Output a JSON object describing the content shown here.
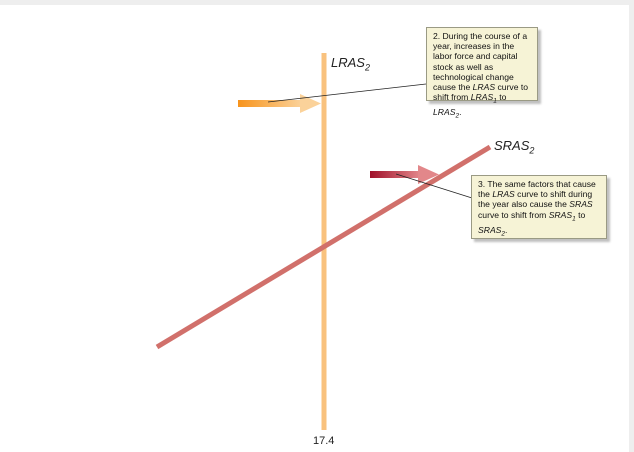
{
  "labels": {
    "lras2_text": "LRAS",
    "lras2_sub": "2",
    "sras2_text": "SRAS",
    "sras2_sub": "2",
    "x_value": "17.4"
  },
  "notes": {
    "note2": {
      "intro": "2.  During the course of a year, increases in the labor force and capital stock as well as technological change cause the ",
      "em1": "LRAS",
      "mid": " curve to shift from ",
      "from_text": "LRAS",
      "from_sub": "1",
      "to_word": " to ",
      "to_text": "LRAS",
      "to_sub": "2",
      "end": "."
    },
    "note3": {
      "intro": "3.  The same factors that cause the ",
      "em1": "LRAS",
      "mid": " curve to shift during the year also cause the ",
      "em2": "SRAS",
      "mid2": " curve to shift from ",
      "from_text": "SRAS",
      "from_sub": "1",
      "to_word": " to ",
      "to_text": "SRAS",
      "to_sub": "2",
      "end": "."
    }
  },
  "colors": {
    "lras": "#f9c27e",
    "sras": "#d1706b",
    "arrow_lras_start": "#f7941d",
    "arrow_lras_end": "#fbd29a",
    "arrow_sras_start": "#a0102a",
    "arrow_sras_end": "#e2878a",
    "note_bg": "#f6f3d6"
  }
}
